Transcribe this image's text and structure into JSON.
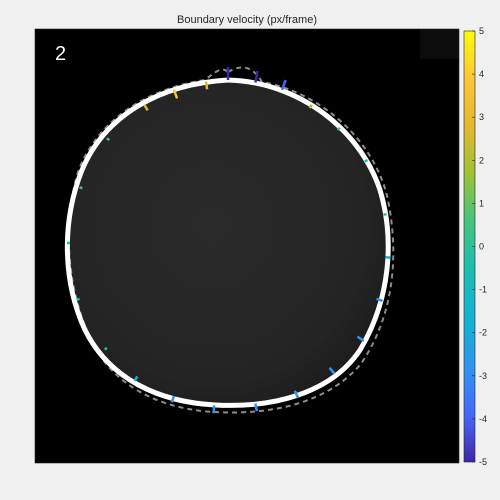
{
  "chart_data": {
    "type": "image-overlay",
    "title": "Boundary velocity (px/frame)",
    "frame_label": "2",
    "colorbar": {
      "min": -5,
      "max": 5,
      "ticks": [
        "5",
        "4",
        "3",
        "2",
        "1",
        "0",
        "-1",
        "-2",
        "-3",
        "-4",
        "-5"
      ],
      "colormap": [
        "#3e26a8",
        "#4668fa",
        "#2d96f0",
        "#12b2d4",
        "#1dbeb0",
        "#45c47c",
        "#9ec234",
        "#e4b82f",
        "#fdc535",
        "#f9fb0e"
      ]
    },
    "boundary_velocity_samples": [
      {
        "angle_deg": -90,
        "velocity": -5
      },
      {
        "angle_deg": -80,
        "velocity": -4.5
      },
      {
        "angle_deg": -70,
        "velocity": -4
      },
      {
        "angle_deg": -58,
        "velocity": 1.5
      },
      {
        "angle_deg": -45,
        "velocity": 0.5
      },
      {
        "angle_deg": -30,
        "velocity": -0.5
      },
      {
        "angle_deg": -10,
        "velocity": -1
      },
      {
        "angle_deg": 5,
        "velocity": -2
      },
      {
        "angle_deg": 20,
        "velocity": -2.5
      },
      {
        "angle_deg": 35,
        "velocity": -3
      },
      {
        "angle_deg": 50,
        "velocity": -3
      },
      {
        "angle_deg": 65,
        "velocity": -3
      },
      {
        "angle_deg": 80,
        "velocity": -3
      },
      {
        "angle_deg": 95,
        "velocity": -3
      },
      {
        "angle_deg": 110,
        "velocity": -2.5
      },
      {
        "angle_deg": 125,
        "velocity": -2
      },
      {
        "angle_deg": 140,
        "velocity": -1
      },
      {
        "angle_deg": 160,
        "velocity": -0.5
      },
      {
        "angle_deg": 180,
        "velocity": -0.3
      },
      {
        "angle_deg": 200,
        "velocity": 0
      },
      {
        "angle_deg": 220,
        "velocity": 0.5
      },
      {
        "angle_deg": 238,
        "velocity": 2.5
      },
      {
        "angle_deg": 250,
        "velocity": 3.5
      },
      {
        "angle_deg": 262,
        "velocity": 3
      }
    ]
  }
}
